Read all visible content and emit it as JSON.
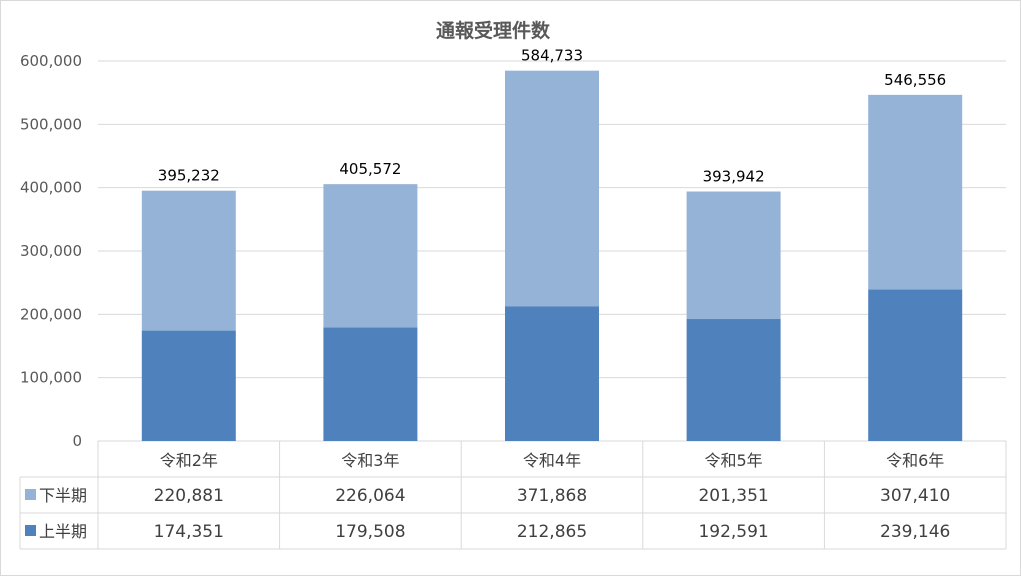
{
  "chart_data": {
    "type": "bar",
    "stacked": true,
    "title": "通報受理件数",
    "categories": [
      "令和2年",
      "令和3年",
      "令和4年",
      "令和5年",
      "令和6年"
    ],
    "series": [
      {
        "name": "上半期",
        "values": [
          174351,
          179508,
          212865,
          192591,
          239146
        ],
        "color": "#4f81bd"
      },
      {
        "name": "下半期",
        "values": [
          220881,
          226064,
          371868,
          201351,
          307410
        ],
        "color": "#95b3d7"
      }
    ],
    "totals": [
      395232,
      405572,
      584733,
      393942,
      546556
    ],
    "ylim": [
      0,
      600000
    ],
    "yticks": [
      0,
      100000,
      200000,
      300000,
      400000,
      500000,
      600000
    ],
    "grid": true,
    "legend": "data table",
    "data_table": {
      "rows": [
        "下半期",
        "上半期"
      ]
    }
  }
}
